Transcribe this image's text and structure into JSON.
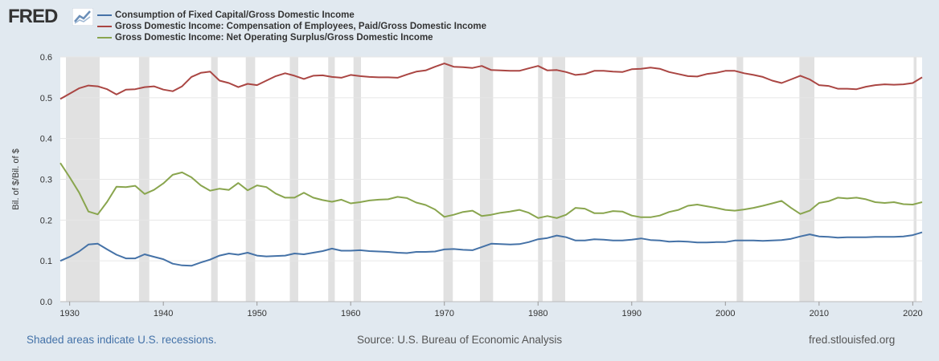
{
  "logo": {
    "text": "FRED",
    "icon": "fred-graph-icon"
  },
  "colors": {
    "background": "#e1e9f0",
    "plot_background": "#ffffff",
    "grid": "#e6e6e6",
    "recession": "#e1e1e1",
    "series": [
      "#4572a7",
      "#aa4643",
      "#89a54e"
    ]
  },
  "footer": {
    "note": "Shaded areas indicate U.S. recessions.",
    "source": "Source: U.S. Bureau of Economic Analysis",
    "site": "fred.stlouisfed.org"
  },
  "chart_data": {
    "type": "line",
    "title": "",
    "ylabel": "Bil. of $/Bil. of $",
    "xlabel": "",
    "xlim": [
      1929,
      2021
    ],
    "ylim": [
      0,
      0.6
    ],
    "grid": true,
    "legend_position": "top-left",
    "x_ticks": [
      "1930",
      "1940",
      "1950",
      "1960",
      "1970",
      "1980",
      "1990",
      "2000",
      "2010",
      "2020"
    ],
    "y_ticks": [
      "0.0",
      "0.1",
      "0.2",
      "0.3",
      "0.4",
      "0.5",
      "0.6"
    ],
    "recessions": [
      [
        1929.6,
        1933.2
      ],
      [
        1937.4,
        1938.5
      ],
      [
        1945.1,
        1945.8
      ],
      [
        1948.8,
        1949.8
      ],
      [
        1953.5,
        1954.4
      ],
      [
        1957.6,
        1958.3
      ],
      [
        1960.3,
        1961.1
      ],
      [
        1969.9,
        1970.9
      ],
      [
        1973.8,
        1975.2
      ],
      [
        1980.0,
        1980.5
      ],
      [
        1981.5,
        1982.9
      ],
      [
        1990.5,
        1991.2
      ],
      [
        2001.2,
        2001.9
      ],
      [
        2007.9,
        2009.5
      ],
      [
        2020.1,
        2020.4
      ]
    ],
    "series": [
      {
        "name": "Consumption of Fixed Capital/Gross Domestic Income",
        "x": [
          1929,
          1930,
          1931,
          1932,
          1933,
          1934,
          1935,
          1936,
          1937,
          1938,
          1939,
          1940,
          1941,
          1942,
          1943,
          1944,
          1945,
          1946,
          1947,
          1948,
          1949,
          1950,
          1951,
          1952,
          1953,
          1954,
          1955,
          1956,
          1957,
          1958,
          1959,
          1960,
          1961,
          1962,
          1963,
          1964,
          1965,
          1966,
          1967,
          1968,
          1969,
          1970,
          1971,
          1972,
          1973,
          1974,
          1975,
          1976,
          1977,
          1978,
          1979,
          1980,
          1981,
          1982,
          1983,
          1984,
          1985,
          1986,
          1987,
          1988,
          1989,
          1990,
          1991,
          1992,
          1993,
          1994,
          1995,
          1996,
          1997,
          1998,
          1999,
          2000,
          2001,
          2002,
          2003,
          2004,
          2005,
          2006,
          2007,
          2008,
          2009,
          2010,
          2011,
          2012,
          2013,
          2014,
          2015,
          2016,
          2017,
          2018,
          2019,
          2020,
          2021
        ],
        "values": [
          0.1,
          0.11,
          0.123,
          0.14,
          0.142,
          0.128,
          0.115,
          0.106,
          0.106,
          0.116,
          0.11,
          0.104,
          0.093,
          0.089,
          0.088,
          0.096,
          0.103,
          0.113,
          0.118,
          0.115,
          0.12,
          0.113,
          0.111,
          0.112,
          0.113,
          0.118,
          0.116,
          0.12,
          0.124,
          0.13,
          0.125,
          0.125,
          0.126,
          0.124,
          0.123,
          0.122,
          0.12,
          0.119,
          0.122,
          0.122,
          0.123,
          0.128,
          0.129,
          0.127,
          0.126,
          0.134,
          0.142,
          0.141,
          0.14,
          0.141,
          0.146,
          0.153,
          0.156,
          0.162,
          0.158,
          0.15,
          0.15,
          0.153,
          0.152,
          0.15,
          0.15,
          0.152,
          0.155,
          0.151,
          0.15,
          0.147,
          0.148,
          0.147,
          0.145,
          0.145,
          0.146,
          0.146,
          0.15,
          0.15,
          0.15,
          0.149,
          0.15,
          0.151,
          0.154,
          0.16,
          0.165,
          0.16,
          0.159,
          0.157,
          0.158,
          0.158,
          0.158,
          0.159,
          0.159,
          0.159,
          0.16,
          0.163,
          0.17
        ]
      },
      {
        "name": "Gross Domestic Income: Compensation of Employees, Paid/Gross Domestic Income",
        "x": [
          1929,
          1930,
          1931,
          1932,
          1933,
          1934,
          1935,
          1936,
          1937,
          1938,
          1939,
          1940,
          1941,
          1942,
          1943,
          1944,
          1945,
          1946,
          1947,
          1948,
          1949,
          1950,
          1951,
          1952,
          1953,
          1954,
          1955,
          1956,
          1957,
          1958,
          1959,
          1960,
          1961,
          1962,
          1963,
          1964,
          1965,
          1966,
          1967,
          1968,
          1969,
          1970,
          1971,
          1972,
          1973,
          1974,
          1975,
          1976,
          1977,
          1978,
          1979,
          1980,
          1981,
          1982,
          1983,
          1984,
          1985,
          1986,
          1987,
          1988,
          1989,
          1990,
          1991,
          1992,
          1993,
          1994,
          1995,
          1996,
          1997,
          1998,
          1999,
          2000,
          2001,
          2002,
          2003,
          2004,
          2005,
          2006,
          2007,
          2008,
          2009,
          2010,
          2011,
          2012,
          2013,
          2014,
          2015,
          2016,
          2017,
          2018,
          2019,
          2020,
          2021
        ],
        "values": [
          0.497,
          0.51,
          0.523,
          0.53,
          0.528,
          0.521,
          0.508,
          0.52,
          0.521,
          0.526,
          0.528,
          0.52,
          0.516,
          0.528,
          0.551,
          0.561,
          0.564,
          0.542,
          0.536,
          0.526,
          0.534,
          0.531,
          0.542,
          0.553,
          0.56,
          0.554,
          0.546,
          0.554,
          0.555,
          0.551,
          0.549,
          0.556,
          0.553,
          0.551,
          0.55,
          0.55,
          0.549,
          0.557,
          0.564,
          0.567,
          0.576,
          0.584,
          0.576,
          0.575,
          0.573,
          0.578,
          0.568,
          0.567,
          0.566,
          0.566,
          0.572,
          0.578,
          0.567,
          0.568,
          0.563,
          0.556,
          0.558,
          0.566,
          0.566,
          0.564,
          0.563,
          0.57,
          0.571,
          0.574,
          0.571,
          0.563,
          0.558,
          0.553,
          0.552,
          0.558,
          0.561,
          0.566,
          0.566,
          0.56,
          0.556,
          0.551,
          0.542,
          0.536,
          0.545,
          0.554,
          0.545,
          0.531,
          0.529,
          0.522,
          0.522,
          0.521,
          0.527,
          0.531,
          0.533,
          0.532,
          0.533,
          0.536,
          0.55
        ]
      },
      {
        "name": "Gross Domestic Income: Net Operating Surplus/Gross Domestic Income",
        "x": [
          1929,
          1930,
          1931,
          1932,
          1933,
          1934,
          1935,
          1936,
          1937,
          1938,
          1939,
          1940,
          1941,
          1942,
          1943,
          1944,
          1945,
          1946,
          1947,
          1948,
          1949,
          1950,
          1951,
          1952,
          1953,
          1954,
          1955,
          1956,
          1957,
          1958,
          1959,
          1960,
          1961,
          1962,
          1963,
          1964,
          1965,
          1966,
          1967,
          1968,
          1969,
          1970,
          1971,
          1972,
          1973,
          1974,
          1975,
          1976,
          1977,
          1978,
          1979,
          1980,
          1981,
          1982,
          1983,
          1984,
          1985,
          1986,
          1987,
          1988,
          1989,
          1990,
          1991,
          1992,
          1993,
          1994,
          1995,
          1996,
          1997,
          1998,
          1999,
          2000,
          2001,
          2002,
          2003,
          2004,
          2005,
          2006,
          2007,
          2008,
          2009,
          2010,
          2011,
          2012,
          2013,
          2014,
          2015,
          2016,
          2017,
          2018,
          2019,
          2020,
          2021
        ],
        "values": [
          0.34,
          0.305,
          0.268,
          0.221,
          0.214,
          0.245,
          0.282,
          0.281,
          0.284,
          0.264,
          0.274,
          0.29,
          0.311,
          0.317,
          0.305,
          0.285,
          0.272,
          0.277,
          0.274,
          0.291,
          0.273,
          0.285,
          0.281,
          0.265,
          0.255,
          0.255,
          0.267,
          0.255,
          0.249,
          0.245,
          0.25,
          0.241,
          0.244,
          0.248,
          0.25,
          0.251,
          0.257,
          0.254,
          0.243,
          0.237,
          0.226,
          0.208,
          0.213,
          0.22,
          0.223,
          0.21,
          0.213,
          0.218,
          0.221,
          0.225,
          0.218,
          0.205,
          0.21,
          0.205,
          0.213,
          0.23,
          0.228,
          0.217,
          0.217,
          0.222,
          0.221,
          0.211,
          0.207,
          0.207,
          0.211,
          0.22,
          0.225,
          0.235,
          0.238,
          0.234,
          0.23,
          0.225,
          0.223,
          0.226,
          0.23,
          0.235,
          0.241,
          0.247,
          0.23,
          0.215,
          0.223,
          0.242,
          0.246,
          0.255,
          0.253,
          0.255,
          0.251,
          0.244,
          0.242,
          0.244,
          0.239,
          0.238,
          0.244
        ]
      }
    ]
  }
}
